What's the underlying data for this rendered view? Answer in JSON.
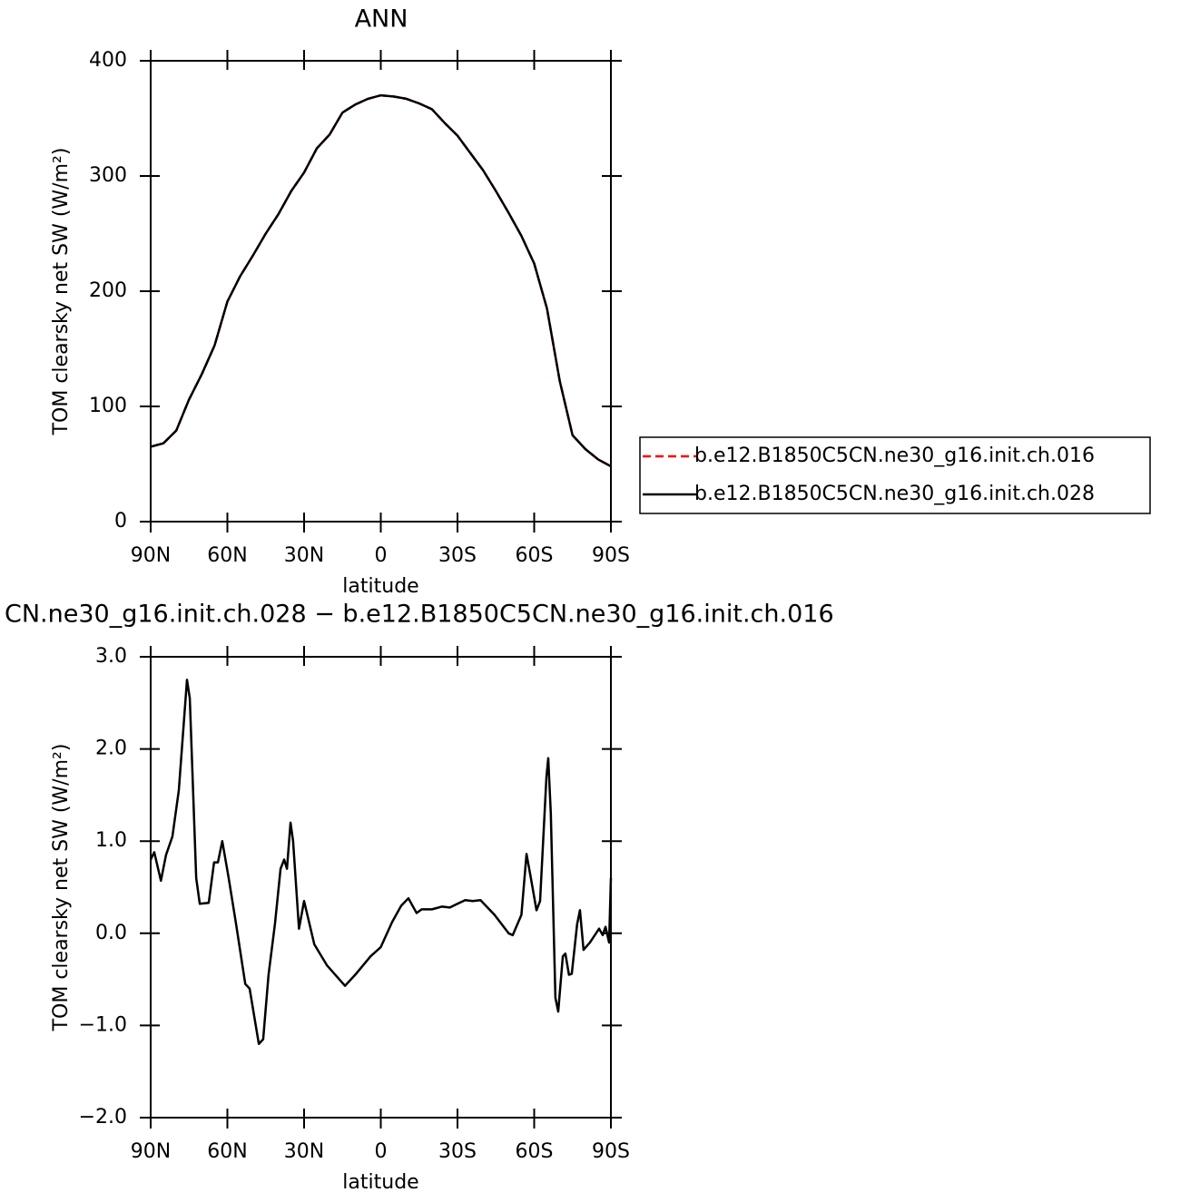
{
  "chart_data": [
    {
      "type": "line",
      "title": "ANN",
      "xlabel": "latitude",
      "ylabel": "TOM clearsky net SW (W/m²)",
      "x": [
        90,
        85,
        80,
        75,
        70,
        65,
        60,
        55,
        50,
        45,
        40,
        35,
        30,
        25,
        20,
        15,
        10,
        5,
        0,
        -5,
        -10,
        -15,
        -20,
        -25,
        -30,
        -35,
        -40,
        -45,
        -50,
        -55,
        -60,
        -65,
        -70,
        -75,
        -80,
        -85,
        -90
      ],
      "series": [
        {
          "name": "b.e12.B1850C5CN.ne30_g16.init.ch.016",
          "color": "#ff0000",
          "dash": true,
          "values": [
            65,
            68,
            79,
            106,
            128,
            153,
            191,
            213,
            231,
            250,
            267,
            287,
            303,
            324,
            336,
            355,
            362,
            367,
            370,
            369,
            367,
            363,
            358,
            346,
            335,
            320,
            305,
            287,
            268,
            248,
            224,
            185,
            122,
            75,
            63,
            54,
            48
          ]
        },
        {
          "name": "b.e12.B1850C5CN.ne30_g16.init.ch.028",
          "color": "#000000",
          "dash": false,
          "values": [
            65,
            68,
            79,
            106,
            128,
            153,
            191,
            213,
            231,
            250,
            267,
            287,
            303,
            324,
            336,
            355,
            362,
            367,
            370,
            369,
            367,
            363,
            358,
            346,
            335,
            320,
            305,
            287,
            268,
            248,
            224,
            185,
            122,
            75,
            63,
            54,
            48
          ]
        }
      ],
      "xlim": [
        90,
        -90
      ],
      "xticks": [
        {
          "value": 90,
          "label": "90N"
        },
        {
          "value": 60,
          "label": "60N"
        },
        {
          "value": 30,
          "label": "30N"
        },
        0,
        {
          "value": -30,
          "label": "30S"
        },
        {
          "value": -60,
          "label": "60S"
        },
        {
          "value": -90,
          "label": "90S"
        }
      ],
      "ylim": [
        0,
        400
      ],
      "yticks": [
        0,
        100,
        200,
        300,
        400
      ],
      "legend": "right"
    },
    {
      "type": "line",
      "title": "CN.ne30_g16.init.ch.028 − b.e12.B1850C5CN.ne30_g16.init.ch.016",
      "xlabel": "latitude",
      "ylabel": "TOM clearsky net SW (W/m²)",
      "x": [
        90,
        88.6,
        86,
        84,
        81.5,
        79,
        75.8,
        74.7,
        72.2,
        70.8,
        67.3,
        65.2,
        63.7,
        62,
        59.5,
        56.6,
        53,
        51.3,
        47.7,
        46,
        43.9,
        41.4,
        39.2,
        37.8,
        36.7,
        35.3,
        34.3,
        32,
        30,
        26,
        21,
        14,
        10,
        4,
        0,
        -4.4,
        -8,
        -10.8,
        -14,
        -16,
        -20,
        -24,
        -27,
        -30,
        -33,
        -36,
        -39,
        -44.5,
        -50,
        -51.6,
        -55,
        -57,
        -58.7,
        -60.9,
        -62.3,
        -64.8,
        -65.5,
        -66.5,
        -68.3,
        -69.4,
        -71.2,
        -72.2,
        -73.6,
        -74.7,
        -76.8,
        -77.9,
        -79.3,
        -81.8,
        -85.4,
        -86.8,
        -87.9,
        -89.3,
        -90
      ],
      "series": [
        {
          "color": "#000000",
          "dash": false,
          "values": [
            0.8,
            0.88,
            0.57,
            0.85,
            1.05,
            1.55,
            2.75,
            2.55,
            0.6,
            0.32,
            0.33,
            0.77,
            0.77,
            1.0,
            0.6,
            0.1,
            -0.55,
            -0.6,
            -1.2,
            -1.15,
            -0.45,
            0.1,
            0.7,
            0.8,
            0.7,
            1.2,
            1.0,
            0.05,
            0.35,
            -0.12,
            -0.35,
            -0.57,
            -0.45,
            -0.25,
            -0.15,
            0.12,
            0.3,
            0.38,
            0.22,
            0.26,
            0.26,
            0.29,
            0.28,
            0.32,
            0.36,
            0.35,
            0.36,
            0.2,
            0.0,
            -0.02,
            0.2,
            0.86,
            0.6,
            0.25,
            0.35,
            1.7,
            1.9,
            1.3,
            -0.7,
            -0.85,
            -0.25,
            -0.22,
            -0.45,
            -0.44,
            0.1,
            0.25,
            -0.18,
            -0.1,
            0.05,
            -0.02,
            0.07,
            -0.1,
            0.6
          ]
        }
      ],
      "xlim": [
        90,
        -90
      ],
      "xticks": [
        {
          "value": 90,
          "label": "90N"
        },
        {
          "value": 60,
          "label": "60N"
        },
        {
          "value": 30,
          "label": "30N"
        },
        0,
        {
          "value": -30,
          "label": "30S"
        },
        {
          "value": -60,
          "label": "60S"
        },
        {
          "value": -90,
          "label": "90S"
        }
      ],
      "ylim": [
        -2,
        3
      ],
      "yticks": [
        {
          "value": -2,
          "label": "−2.0"
        },
        {
          "value": -1,
          "label": "−1.0"
        },
        {
          "value": 0,
          "label": "0.0"
        },
        {
          "value": 1,
          "label": "1.0"
        },
        {
          "value": 2,
          "label": "2.0"
        },
        {
          "value": 3,
          "label": "3.0"
        }
      ]
    }
  ]
}
